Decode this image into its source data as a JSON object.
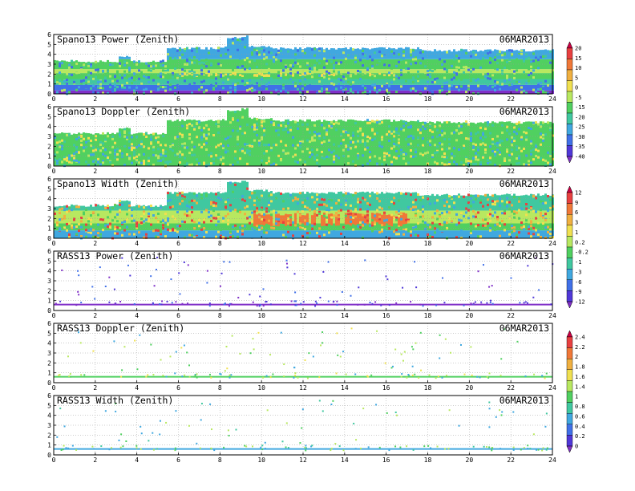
{
  "chart_data": [
    {
      "type": "heatmap",
      "title": "Spano13 Power (Zenith)",
      "date": "06MAR2013",
      "xlim": [
        0,
        24
      ],
      "xticks": [
        "0",
        "2",
        "4",
        "6",
        "8",
        "10",
        "12",
        "14",
        "16",
        "18",
        "20",
        "22",
        "24"
      ],
      "ylim": [
        0,
        6
      ],
      "yticks": [
        "0",
        "1",
        "2",
        "3",
        "4",
        "5",
        "6"
      ],
      "colorbar": {
        "labels": [
          "20",
          "15",
          "10",
          "5",
          "0",
          "-5",
          "-15",
          "-20",
          "-25",
          "-30",
          "-35",
          "-40"
        ],
        "colors": [
          "#cc0044",
          "#e84040",
          "#f07838",
          "#f0b040",
          "#f0e050",
          "#b8e860",
          "#50d060",
          "#40c8a0",
          "#40a8e0",
          "#4070e8",
          "#5038d8",
          "#8030c8"
        ]
      },
      "field": {
        "coverage_top_km": [
          [
            0,
            3.3
          ],
          [
            3,
            3.3
          ],
          [
            3.05,
            3.8
          ],
          [
            3.6,
            3.8
          ],
          [
            3.65,
            3.3
          ],
          [
            5.3,
            3.3
          ],
          [
            5.35,
            4.6
          ],
          [
            8.0,
            4.7
          ],
          [
            8.3,
            5.6
          ],
          [
            9.0,
            5.8
          ],
          [
            9.3,
            4.8
          ],
          [
            10.5,
            4.6
          ],
          [
            17.0,
            4.6
          ],
          [
            17.5,
            4.4
          ],
          [
            24,
            4.4
          ]
        ],
        "layers": [
          {
            "from_km": 0.0,
            "to_km": 0.35,
            "color": "#8030c8"
          },
          {
            "from_km": 0.35,
            "to_km": 0.9,
            "color": "#4070e8"
          },
          {
            "from_km": 0.9,
            "to_km": 1.5,
            "color": "#40c8a0"
          },
          {
            "from_km": 1.5,
            "to_km": 2.1,
            "color": "#50d060"
          },
          {
            "from_km": 2.1,
            "to_km": 2.5,
            "color": "#b8e860"
          },
          {
            "from_km": 2.5,
            "to_km": 3.5,
            "color": "#50d060"
          },
          {
            "from_km": 3.5,
            "to_km": 6.0,
            "color": "#40a8e0"
          }
        ],
        "band": {
          "from_km": 1.7,
          "to_km": 2.2,
          "color": "#f0e050",
          "from_hr": 5.8,
          "to_hr": 16.5
        },
        "speckle_colors": [
          "#40a8e0",
          "#50d060",
          "#40c8a0",
          "#b8e860",
          "#4070e8"
        ]
      }
    },
    {
      "type": "heatmap",
      "title": "Spano13 Doppler (Zenith)",
      "date": "06MAR2013",
      "xlim": [
        0,
        24
      ],
      "xticks": [
        "0",
        "2",
        "4",
        "6",
        "8",
        "10",
        "12",
        "14",
        "16",
        "18",
        "20",
        "22",
        "24"
      ],
      "ylim": [
        0,
        6
      ],
      "yticks": [
        "0",
        "1",
        "2",
        "3",
        "4",
        "5",
        "6"
      ],
      "field": {
        "coverage_top_km": [
          [
            0,
            3.3
          ],
          [
            3,
            3.3
          ],
          [
            3.05,
            3.8
          ],
          [
            3.6,
            3.8
          ],
          [
            3.65,
            3.3
          ],
          [
            5.3,
            3.3
          ],
          [
            5.35,
            4.6
          ],
          [
            8.0,
            4.7
          ],
          [
            8.3,
            5.6
          ],
          [
            9.0,
            5.8
          ],
          [
            9.3,
            4.8
          ],
          [
            10.5,
            4.6
          ],
          [
            17.0,
            4.6
          ],
          [
            17.5,
            4.4
          ],
          [
            24,
            4.4
          ]
        ],
        "layers": [
          {
            "from_km": 0.0,
            "to_km": 6.0,
            "color": "#50d060"
          }
        ],
        "speckle_colors": [
          "#b8e860",
          "#40c8a0",
          "#f0e050",
          "#40a8e0"
        ]
      }
    },
    {
      "type": "heatmap",
      "title": "Spano13 Width (Zenith)",
      "date": "06MAR2013",
      "xlim": [
        0,
        24
      ],
      "xticks": [
        "0",
        "2",
        "4",
        "6",
        "8",
        "10",
        "12",
        "14",
        "16",
        "18",
        "20",
        "22",
        "24"
      ],
      "ylim": [
        0,
        6
      ],
      "yticks": [
        "0",
        "1",
        "2",
        "3",
        "4",
        "5",
        "6"
      ],
      "colorbar": {
        "labels": [
          "12",
          "9",
          "6",
          "3",
          "1",
          "0.2",
          "-0.2",
          "-1",
          "-3",
          "-6",
          "-9",
          "-12"
        ],
        "colors": [
          "#cc0044",
          "#e84040",
          "#f07838",
          "#f0b040",
          "#f0e050",
          "#b8e860",
          "#50d060",
          "#40c8a0",
          "#40a8e0",
          "#4070e8",
          "#5038d8",
          "#8030c8"
        ]
      },
      "field": {
        "coverage_top_km": [
          [
            0,
            3.3
          ],
          [
            3,
            3.3
          ],
          [
            3.05,
            3.8
          ],
          [
            3.6,
            3.8
          ],
          [
            3.65,
            3.3
          ],
          [
            5.3,
            3.3
          ],
          [
            5.35,
            4.6
          ],
          [
            8.0,
            4.7
          ],
          [
            8.3,
            5.6
          ],
          [
            9.0,
            5.8
          ],
          [
            9.3,
            4.8
          ],
          [
            10.5,
            4.6
          ],
          [
            17.0,
            4.6
          ],
          [
            17.5,
            4.4
          ],
          [
            24,
            4.4
          ]
        ],
        "layers": [
          {
            "from_km": 0.0,
            "to_km": 0.8,
            "color": "#40a8e0"
          },
          {
            "from_km": 0.8,
            "to_km": 1.5,
            "color": "#50d060"
          },
          {
            "from_km": 1.5,
            "to_km": 2.8,
            "color": "#b8e860"
          },
          {
            "from_km": 2.8,
            "to_km": 6.0,
            "color": "#40c8a0"
          }
        ],
        "band": {
          "from_km": 1.2,
          "to_km": 2.6,
          "color": "#f07838",
          "from_hr": 9.5,
          "to_hr": 17.0
        },
        "speckle_colors": [
          "#e84040",
          "#f0e050",
          "#f0b040",
          "#50d060",
          "#40a8e0"
        ]
      }
    },
    {
      "type": "scatter",
      "title": "RASS13 Power (Zenith)",
      "date": "06MAR2013",
      "xlim": [
        0,
        24
      ],
      "xticks": [
        "0",
        "2",
        "4",
        "6",
        "8",
        "10",
        "12",
        "14",
        "16",
        "18",
        "20",
        "22",
        "24"
      ],
      "ylim": [
        0,
        6
      ],
      "yticks": [
        "0",
        "1",
        "2",
        "3",
        "4",
        "5",
        "6"
      ],
      "baseline_km": 0.6,
      "baseline_color": "#8030c8",
      "speckle_colors": [
        "#5038d8",
        "#8030c8",
        "#4070e8"
      ]
    },
    {
      "type": "scatter",
      "title": "RASS13 Doppler (Zenith)",
      "date": "06MAR2013",
      "xlim": [
        0,
        24
      ],
      "xticks": [
        "0",
        "2",
        "4",
        "6",
        "8",
        "10",
        "12",
        "14",
        "16",
        "18",
        "20",
        "22",
        "24"
      ],
      "ylim": [
        0,
        6
      ],
      "yticks": [
        "0",
        "1",
        "2",
        "3",
        "4",
        "5",
        "6"
      ],
      "colorbar": {
        "labels": [
          "2.4",
          "2.2",
          "2",
          "1.8",
          "1.6",
          "1.4",
          "1",
          "0.8",
          "0.6",
          "0.4",
          "0.2",
          "0"
        ],
        "colors": [
          "#cc0044",
          "#e84040",
          "#f07838",
          "#f0b040",
          "#f0e050",
          "#b8e860",
          "#50d060",
          "#40c8a0",
          "#40a8e0",
          "#4070e8",
          "#5038d8",
          "#8030c8"
        ]
      },
      "baseline_km": 0.6,
      "baseline_color": "#50d060",
      "speckle_colors": [
        "#b8e860",
        "#50d060",
        "#f0e050",
        "#40a8e0"
      ]
    },
    {
      "type": "scatter",
      "title": "RASS13 Width (Zenith)",
      "date": "06MAR2013",
      "xlim": [
        0,
        24
      ],
      "xticks": [
        "0",
        "2",
        "4",
        "6",
        "8",
        "10",
        "12",
        "14",
        "16",
        "18",
        "20",
        "22",
        "24"
      ],
      "ylim": [
        0,
        6
      ],
      "yticks": [
        "0",
        "1",
        "2",
        "3",
        "4",
        "5",
        "6"
      ],
      "baseline_km": 0.6,
      "baseline_color": "#40a8e0",
      "speckle_colors": [
        "#50d060",
        "#40a8e0",
        "#b8e860",
        "#40c8a0"
      ]
    }
  ]
}
